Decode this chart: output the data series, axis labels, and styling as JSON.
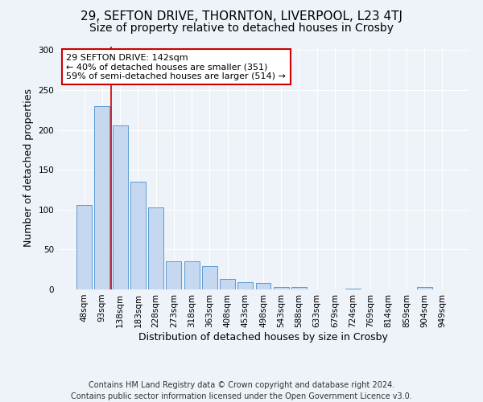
{
  "title": "29, SEFTON DRIVE, THORNTON, LIVERPOOL, L23 4TJ",
  "subtitle": "Size of property relative to detached houses in Crosby",
  "xlabel": "Distribution of detached houses by size in Crosby",
  "ylabel": "Number of detached properties",
  "categories": [
    "48sqm",
    "93sqm",
    "138sqm",
    "183sqm",
    "228sqm",
    "273sqm",
    "318sqm",
    "363sqm",
    "408sqm",
    "453sqm",
    "498sqm",
    "543sqm",
    "588sqm",
    "633sqm",
    "679sqm",
    "724sqm",
    "769sqm",
    "814sqm",
    "859sqm",
    "904sqm",
    "949sqm"
  ],
  "values": [
    106,
    230,
    206,
    135,
    103,
    35,
    35,
    29,
    13,
    9,
    8,
    3,
    3,
    0,
    0,
    1,
    0,
    0,
    0,
    3,
    0
  ],
  "bar_color": "#c5d8f0",
  "bar_edgecolor": "#5b9bd5",
  "vline_x": 1.5,
  "vline_color": "#cc0000",
  "annotation_text": "29 SEFTON DRIVE: 142sqm\n← 40% of detached houses are smaller (351)\n59% of semi-detached houses are larger (514) →",
  "annotation_box_color": "#ffffff",
  "annotation_box_edgecolor": "#cc0000",
  "footer_line1": "Contains HM Land Registry data © Crown copyright and database right 2024.",
  "footer_line2": "Contains public sector information licensed under the Open Government Licence v3.0.",
  "bg_color": "#eef2f9",
  "plot_bg_color": "#eef2f9",
  "ylim": [
    0,
    305
  ],
  "title_fontsize": 11,
  "subtitle_fontsize": 10,
  "ylabel_fontsize": 9,
  "xlabel_fontsize": 9,
  "tick_fontsize": 7.5,
  "footer_fontsize": 7
}
